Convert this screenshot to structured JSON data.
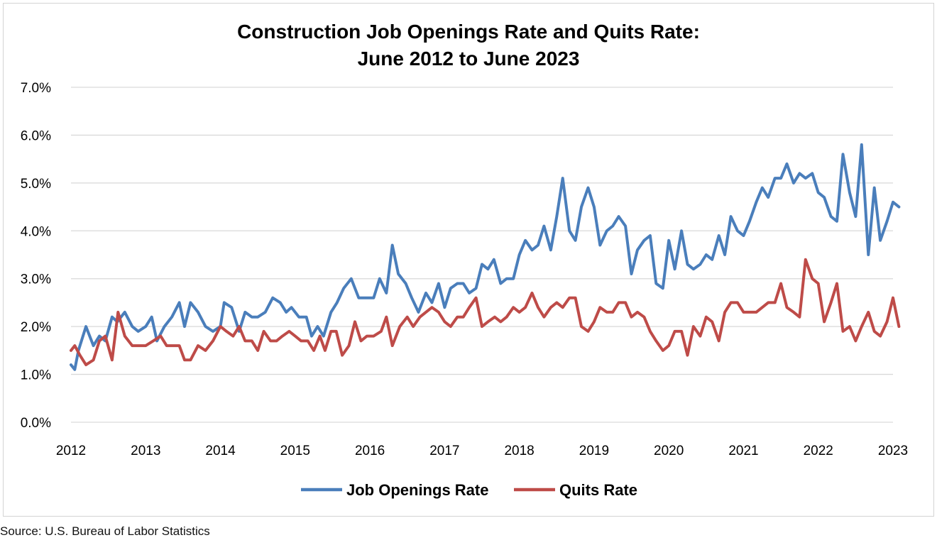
{
  "chart_data": {
    "type": "line",
    "title_lines": [
      "Construction Job Openings Rate and Quits Rate:",
      "June 2012 to June 2023"
    ],
    "y_ticks": [
      "0.0%",
      "1.0%",
      "2.0%",
      "3.0%",
      "4.0%",
      "5.0%",
      "6.0%",
      "7.0%"
    ],
    "ylim": [
      0,
      7
    ],
    "x_ticks": [
      "2012",
      "2013",
      "2014",
      "2015",
      "2016",
      "2017",
      "2018",
      "2019",
      "2020",
      "2021",
      "2022",
      "2023"
    ],
    "xlim": [
      2012,
      2023
    ],
    "grid": true,
    "legend_position": "bottom",
    "source": "Source: U.S. Bureau of Labor Statistics",
    "series": [
      {
        "name": "Job Openings Rate",
        "color": "#4a7ebb",
        "points": [
          [
            2012.0,
            1.2
          ],
          [
            2012.05,
            1.1
          ],
          [
            2012.1,
            1.5
          ],
          [
            2012.2,
            2.0
          ],
          [
            2012.3,
            1.6
          ],
          [
            2012.38,
            1.8
          ],
          [
            2012.46,
            1.7
          ],
          [
            2012.55,
            2.2
          ],
          [
            2012.62,
            2.1
          ],
          [
            2012.72,
            2.3
          ],
          [
            2012.82,
            2.0
          ],
          [
            2012.9,
            1.9
          ],
          [
            2013.0,
            2.0
          ],
          [
            2013.08,
            2.2
          ],
          [
            2013.15,
            1.7
          ],
          [
            2013.25,
            2.0
          ],
          [
            2013.35,
            2.2
          ],
          [
            2013.45,
            2.5
          ],
          [
            2013.52,
            2.0
          ],
          [
            2013.6,
            2.5
          ],
          [
            2013.7,
            2.3
          ],
          [
            2013.8,
            2.0
          ],
          [
            2013.9,
            1.9
          ],
          [
            2014.0,
            2.0
          ],
          [
            2014.05,
            2.5
          ],
          [
            2014.15,
            2.4
          ],
          [
            2014.25,
            1.9
          ],
          [
            2014.33,
            2.3
          ],
          [
            2014.42,
            2.2
          ],
          [
            2014.5,
            2.2
          ],
          [
            2014.6,
            2.3
          ],
          [
            2014.7,
            2.6
          ],
          [
            2014.8,
            2.5
          ],
          [
            2014.88,
            2.3
          ],
          [
            2014.95,
            2.4
          ],
          [
            2015.05,
            2.2
          ],
          [
            2015.15,
            2.2
          ],
          [
            2015.22,
            1.8
          ],
          [
            2015.3,
            2.0
          ],
          [
            2015.38,
            1.8
          ],
          [
            2015.48,
            2.3
          ],
          [
            2015.56,
            2.5
          ],
          [
            2015.65,
            2.8
          ],
          [
            2015.75,
            3.0
          ],
          [
            2015.85,
            2.6
          ],
          [
            2015.95,
            2.6
          ],
          [
            2016.05,
            2.6
          ],
          [
            2016.13,
            3.0
          ],
          [
            2016.22,
            2.7
          ],
          [
            2016.3,
            3.7
          ],
          [
            2016.38,
            3.1
          ],
          [
            2016.48,
            2.9
          ],
          [
            2016.56,
            2.6
          ],
          [
            2016.65,
            2.3
          ],
          [
            2016.75,
            2.7
          ],
          [
            2016.83,
            2.5
          ],
          [
            2016.92,
            2.9
          ],
          [
            2017.0,
            2.4
          ],
          [
            2017.08,
            2.8
          ],
          [
            2017.17,
            2.9
          ],
          [
            2017.25,
            2.9
          ],
          [
            2017.33,
            2.7
          ],
          [
            2017.42,
            2.8
          ],
          [
            2017.5,
            3.3
          ],
          [
            2017.58,
            3.2
          ],
          [
            2017.66,
            3.4
          ],
          [
            2017.75,
            2.9
          ],
          [
            2017.83,
            3.0
          ],
          [
            2017.92,
            3.0
          ],
          [
            2018.0,
            3.5
          ],
          [
            2018.08,
            3.8
          ],
          [
            2018.17,
            3.6
          ],
          [
            2018.25,
            3.7
          ],
          [
            2018.33,
            4.1
          ],
          [
            2018.42,
            3.6
          ],
          [
            2018.5,
            4.3
          ],
          [
            2018.58,
            5.1
          ],
          [
            2018.67,
            4.0
          ],
          [
            2018.75,
            3.8
          ],
          [
            2018.83,
            4.5
          ],
          [
            2018.92,
            4.9
          ],
          [
            2019.0,
            4.5
          ],
          [
            2019.08,
            3.7
          ],
          [
            2019.17,
            4.0
          ],
          [
            2019.25,
            4.1
          ],
          [
            2019.33,
            4.3
          ],
          [
            2019.42,
            4.1
          ],
          [
            2019.5,
            3.1
          ],
          [
            2019.58,
            3.6
          ],
          [
            2019.67,
            3.8
          ],
          [
            2019.75,
            3.9
          ],
          [
            2019.83,
            2.9
          ],
          [
            2019.92,
            2.8
          ],
          [
            2020.0,
            3.8
          ],
          [
            2020.08,
            3.2
          ],
          [
            2020.17,
            4.0
          ],
          [
            2020.25,
            3.3
          ],
          [
            2020.33,
            3.2
          ],
          [
            2020.42,
            3.3
          ],
          [
            2020.5,
            3.5
          ],
          [
            2020.58,
            3.4
          ],
          [
            2020.67,
            3.9
          ],
          [
            2020.75,
            3.5
          ],
          [
            2020.83,
            4.3
          ],
          [
            2020.92,
            4.0
          ],
          [
            2021.0,
            3.9
          ],
          [
            2021.08,
            4.2
          ],
          [
            2021.17,
            4.6
          ],
          [
            2021.25,
            4.9
          ],
          [
            2021.33,
            4.7
          ],
          [
            2021.42,
            5.1
          ],
          [
            2021.5,
            5.1
          ],
          [
            2021.58,
            5.4
          ],
          [
            2021.67,
            5.0
          ],
          [
            2021.75,
            5.2
          ],
          [
            2021.83,
            5.1
          ],
          [
            2021.92,
            5.2
          ],
          [
            2022.0,
            4.8
          ],
          [
            2022.08,
            4.7
          ],
          [
            2022.17,
            4.3
          ],
          [
            2022.25,
            4.2
          ],
          [
            2022.33,
            5.6
          ],
          [
            2022.42,
            4.8
          ],
          [
            2022.5,
            4.3
          ],
          [
            2022.58,
            5.8
          ],
          [
            2022.67,
            3.5
          ],
          [
            2022.75,
            4.9
          ],
          [
            2022.83,
            3.8
          ],
          [
            2022.92,
            4.2
          ],
          [
            2023.0,
            4.6
          ],
          [
            2023.08,
            4.5
          ]
        ]
      },
      {
        "name": "Quits Rate",
        "color": "#be4b48",
        "points": [
          [
            2012.0,
            1.5
          ],
          [
            2012.05,
            1.6
          ],
          [
            2012.12,
            1.4
          ],
          [
            2012.2,
            1.2
          ],
          [
            2012.3,
            1.3
          ],
          [
            2012.38,
            1.7
          ],
          [
            2012.46,
            1.8
          ],
          [
            2012.55,
            1.3
          ],
          [
            2012.63,
            2.3
          ],
          [
            2012.72,
            1.8
          ],
          [
            2012.82,
            1.6
          ],
          [
            2012.92,
            1.6
          ],
          [
            2013.0,
            1.6
          ],
          [
            2013.1,
            1.7
          ],
          [
            2013.2,
            1.8
          ],
          [
            2013.28,
            1.6
          ],
          [
            2013.38,
            1.6
          ],
          [
            2013.45,
            1.6
          ],
          [
            2013.52,
            1.3
          ],
          [
            2013.6,
            1.3
          ],
          [
            2013.7,
            1.6
          ],
          [
            2013.8,
            1.5
          ],
          [
            2013.9,
            1.7
          ],
          [
            2014.0,
            2.0
          ],
          [
            2014.08,
            1.9
          ],
          [
            2014.17,
            1.8
          ],
          [
            2014.25,
            2.0
          ],
          [
            2014.33,
            1.7
          ],
          [
            2014.42,
            1.7
          ],
          [
            2014.5,
            1.5
          ],
          [
            2014.58,
            1.9
          ],
          [
            2014.67,
            1.7
          ],
          [
            2014.75,
            1.7
          ],
          [
            2014.83,
            1.8
          ],
          [
            2014.92,
            1.9
          ],
          [
            2015.0,
            1.8
          ],
          [
            2015.08,
            1.7
          ],
          [
            2015.17,
            1.7
          ],
          [
            2015.25,
            1.5
          ],
          [
            2015.33,
            1.8
          ],
          [
            2015.4,
            1.5
          ],
          [
            2015.48,
            1.9
          ],
          [
            2015.55,
            1.9
          ],
          [
            2015.63,
            1.4
          ],
          [
            2015.72,
            1.6
          ],
          [
            2015.8,
            2.1
          ],
          [
            2015.88,
            1.7
          ],
          [
            2015.96,
            1.8
          ],
          [
            2016.05,
            1.8
          ],
          [
            2016.15,
            1.9
          ],
          [
            2016.22,
            2.2
          ],
          [
            2016.3,
            1.6
          ],
          [
            2016.4,
            2.0
          ],
          [
            2016.5,
            2.2
          ],
          [
            2016.58,
            2.0
          ],
          [
            2016.67,
            2.2
          ],
          [
            2016.75,
            2.3
          ],
          [
            2016.83,
            2.4
          ],
          [
            2016.92,
            2.3
          ],
          [
            2017.0,
            2.1
          ],
          [
            2017.08,
            2.0
          ],
          [
            2017.17,
            2.2
          ],
          [
            2017.25,
            2.2
          ],
          [
            2017.33,
            2.4
          ],
          [
            2017.42,
            2.6
          ],
          [
            2017.5,
            2.0
          ],
          [
            2017.58,
            2.1
          ],
          [
            2017.67,
            2.2
          ],
          [
            2017.75,
            2.1
          ],
          [
            2017.83,
            2.2
          ],
          [
            2017.92,
            2.4
          ],
          [
            2018.0,
            2.3
          ],
          [
            2018.08,
            2.4
          ],
          [
            2018.17,
            2.7
          ],
          [
            2018.25,
            2.4
          ],
          [
            2018.33,
            2.2
          ],
          [
            2018.42,
            2.4
          ],
          [
            2018.5,
            2.5
          ],
          [
            2018.58,
            2.4
          ],
          [
            2018.67,
            2.6
          ],
          [
            2018.75,
            2.6
          ],
          [
            2018.83,
            2.0
          ],
          [
            2018.92,
            1.9
          ],
          [
            2019.0,
            2.1
          ],
          [
            2019.08,
            2.4
          ],
          [
            2019.17,
            2.3
          ],
          [
            2019.25,
            2.3
          ],
          [
            2019.33,
            2.5
          ],
          [
            2019.42,
            2.5
          ],
          [
            2019.5,
            2.2
          ],
          [
            2019.58,
            2.3
          ],
          [
            2019.67,
            2.2
          ],
          [
            2019.75,
            1.9
          ],
          [
            2019.83,
            1.7
          ],
          [
            2019.92,
            1.5
          ],
          [
            2020.0,
            1.6
          ],
          [
            2020.08,
            1.9
          ],
          [
            2020.17,
            1.9
          ],
          [
            2020.25,
            1.4
          ],
          [
            2020.33,
            2.0
          ],
          [
            2020.42,
            1.8
          ],
          [
            2020.5,
            2.2
          ],
          [
            2020.58,
            2.1
          ],
          [
            2020.67,
            1.7
          ],
          [
            2020.75,
            2.3
          ],
          [
            2020.83,
            2.5
          ],
          [
            2020.92,
            2.5
          ],
          [
            2021.0,
            2.3
          ],
          [
            2021.08,
            2.3
          ],
          [
            2021.17,
            2.3
          ],
          [
            2021.25,
            2.4
          ],
          [
            2021.33,
            2.5
          ],
          [
            2021.42,
            2.5
          ],
          [
            2021.5,
            2.9
          ],
          [
            2021.58,
            2.4
          ],
          [
            2021.67,
            2.3
          ],
          [
            2021.75,
            2.2
          ],
          [
            2021.83,
            3.4
          ],
          [
            2021.92,
            3.0
          ],
          [
            2022.0,
            2.9
          ],
          [
            2022.08,
            2.1
          ],
          [
            2022.17,
            2.5
          ],
          [
            2022.25,
            2.9
          ],
          [
            2022.33,
            1.9
          ],
          [
            2022.42,
            2.0
          ],
          [
            2022.5,
            1.7
          ],
          [
            2022.58,
            2.0
          ],
          [
            2022.67,
            2.3
          ],
          [
            2022.75,
            1.9
          ],
          [
            2022.83,
            1.8
          ],
          [
            2022.92,
            2.1
          ],
          [
            2023.0,
            2.6
          ],
          [
            2023.08,
            2.0
          ]
        ]
      }
    ]
  }
}
